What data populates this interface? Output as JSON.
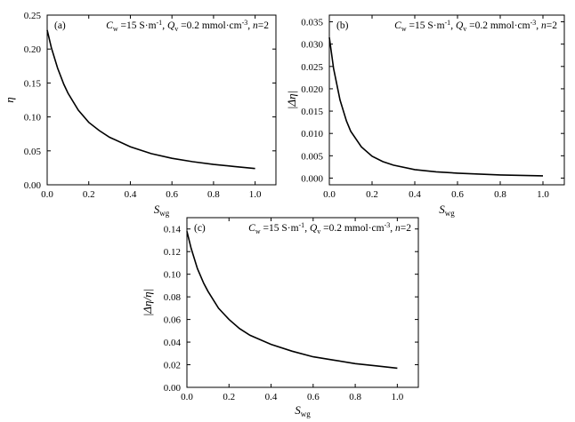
{
  "chart_data": [
    {
      "type": "line",
      "panel_label": "(a)",
      "annotation": {
        "cw_sym": "C",
        "cw_sub": "w",
        "cw_val": " =15 S·m",
        "cw_exp": "-1",
        "sep1": ", ",
        "qv_sym": "Q",
        "qv_sub": "v",
        "qv_val": " =0.2 mmol·cm",
        "qv_exp": "-3",
        "sep2": ", ",
        "n_sym": "n",
        "n_val": "=2"
      },
      "xlabel": {
        "main": "S",
        "sub": "wg"
      },
      "ylabel": {
        "text": "η"
      },
      "xlim": [
        0,
        1.1
      ],
      "ylim": [
        0,
        0.25
      ],
      "x_ticks": [
        "0.0",
        "0.2",
        "0.4",
        "0.6",
        "0.8",
        "1.0"
      ],
      "y_ticks": [
        "0.00",
        "0.05",
        "0.10",
        "0.15",
        "0.20",
        "0.25"
      ],
      "series": [
        {
          "x": [
            0.0,
            0.02,
            0.05,
            0.08,
            0.1,
            0.15,
            0.2,
            0.25,
            0.3,
            0.4,
            0.5,
            0.6,
            0.7,
            0.8,
            0.9,
            1.0
          ],
          "y": [
            0.228,
            0.202,
            0.172,
            0.148,
            0.135,
            0.11,
            0.092,
            0.08,
            0.07,
            0.056,
            0.046,
            0.039,
            0.034,
            0.03,
            0.027,
            0.024
          ]
        }
      ],
      "color": "#000000"
    },
    {
      "type": "line",
      "panel_label": "(b)",
      "annotation": {
        "cw_sym": "C",
        "cw_sub": "w",
        "cw_val": " =15 S·m",
        "cw_exp": "-1",
        "sep1": ", ",
        "qv_sym": "Q",
        "qv_sub": "v",
        "qv_val": " =0.2 mmol·cm",
        "qv_exp": "-3",
        "sep2": ", ",
        "n_sym": "n",
        "n_val": "=2"
      },
      "xlabel": {
        "main": "S",
        "sub": "wg"
      },
      "ylabel": {
        "text": "|Δη|"
      },
      "xlim": [
        0,
        1.1
      ],
      "ylim": [
        -0.0015,
        0.0365
      ],
      "x_ticks": [
        "0.0",
        "0.2",
        "0.4",
        "0.6",
        "0.8",
        "1.0"
      ],
      "y_ticks": [
        "0.000",
        "0.005",
        "0.010",
        "0.015",
        "0.020",
        "0.025",
        "0.030",
        "0.035"
      ],
      "series": [
        {
          "x": [
            0.0,
            0.02,
            0.05,
            0.08,
            0.1,
            0.15,
            0.2,
            0.25,
            0.3,
            0.4,
            0.5,
            0.6,
            0.7,
            0.8,
            0.9,
            1.0
          ],
          "y": [
            0.0315,
            0.0245,
            0.0175,
            0.0128,
            0.0105,
            0.007,
            0.0049,
            0.0037,
            0.0029,
            0.0019,
            0.0014,
            0.0011,
            0.0009,
            0.0007,
            0.0006,
            0.0005
          ]
        }
      ],
      "color": "#000000"
    },
    {
      "type": "line",
      "panel_label": "(c)",
      "annotation": {
        "cw_sym": "C",
        "cw_sub": "w",
        "cw_val": " =15 S·m",
        "cw_exp": "-1",
        "sep1": ", ",
        "qv_sym": "Q",
        "qv_sub": "v",
        "qv_val": " =0.2 mmol·cm",
        "qv_exp": "-3",
        "sep2": ", ",
        "n_sym": "n",
        "n_val": "=2"
      },
      "xlabel": {
        "main": "S",
        "sub": "wg"
      },
      "ylabel": {
        "text": "|Δη/η|"
      },
      "xlim": [
        0,
        1.1
      ],
      "ylim": [
        0,
        0.15
      ],
      "x_ticks": [
        "0.0",
        "0.2",
        "0.4",
        "0.6",
        "0.8",
        "1.0"
      ],
      "y_ticks": [
        "0.00",
        "0.02",
        "0.04",
        "0.06",
        "0.08",
        "0.10",
        "0.12",
        "0.14"
      ],
      "series": [
        {
          "x": [
            0.0,
            0.02,
            0.05,
            0.08,
            0.1,
            0.15,
            0.2,
            0.25,
            0.3,
            0.4,
            0.5,
            0.6,
            0.7,
            0.8,
            0.9,
            1.0
          ],
          "y": [
            0.138,
            0.123,
            0.105,
            0.092,
            0.085,
            0.07,
            0.06,
            0.052,
            0.046,
            0.038,
            0.032,
            0.027,
            0.024,
            0.021,
            0.019,
            0.017
          ]
        }
      ],
      "color": "#000000"
    }
  ]
}
